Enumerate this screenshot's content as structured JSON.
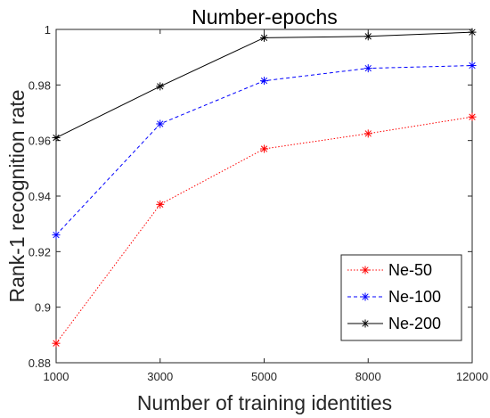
{
  "chart_data": {
    "type": "line",
    "title": "Number-epochs",
    "xlabel": "Number of training identities",
    "ylabel": "Rank-1 recognition rate",
    "x": [
      1000,
      3000,
      5000,
      8000,
      12000
    ],
    "x_tick_labels": [
      "1000",
      "3000",
      "5000",
      "8000",
      "12000"
    ],
    "y_ticks": [
      0.88,
      0.9,
      0.92,
      0.94,
      0.96,
      0.98,
      1
    ],
    "y_tick_labels": [
      "0.88",
      "0.9",
      "0.92",
      "0.94",
      "0.96",
      "0.98",
      "1"
    ],
    "ylim": [
      0.88,
      1.0
    ],
    "grid": false,
    "legend_position": "lower-right",
    "series": [
      {
        "name": "Ne-50",
        "color": "#ff0000",
        "line_style": "dotted",
        "marker": "asterisk",
        "values": [
          0.887,
          0.937,
          0.957,
          0.9625,
          0.9685
        ]
      },
      {
        "name": "Ne-100",
        "color": "#0000ff",
        "line_style": "dashed",
        "marker": "asterisk",
        "values": [
          0.926,
          0.966,
          0.9815,
          0.986,
          0.987
        ]
      },
      {
        "name": "Ne-200",
        "color": "#000000",
        "line_style": "solid",
        "marker": "asterisk",
        "values": [
          0.961,
          0.9795,
          0.997,
          0.9975,
          0.999
        ]
      }
    ]
  }
}
